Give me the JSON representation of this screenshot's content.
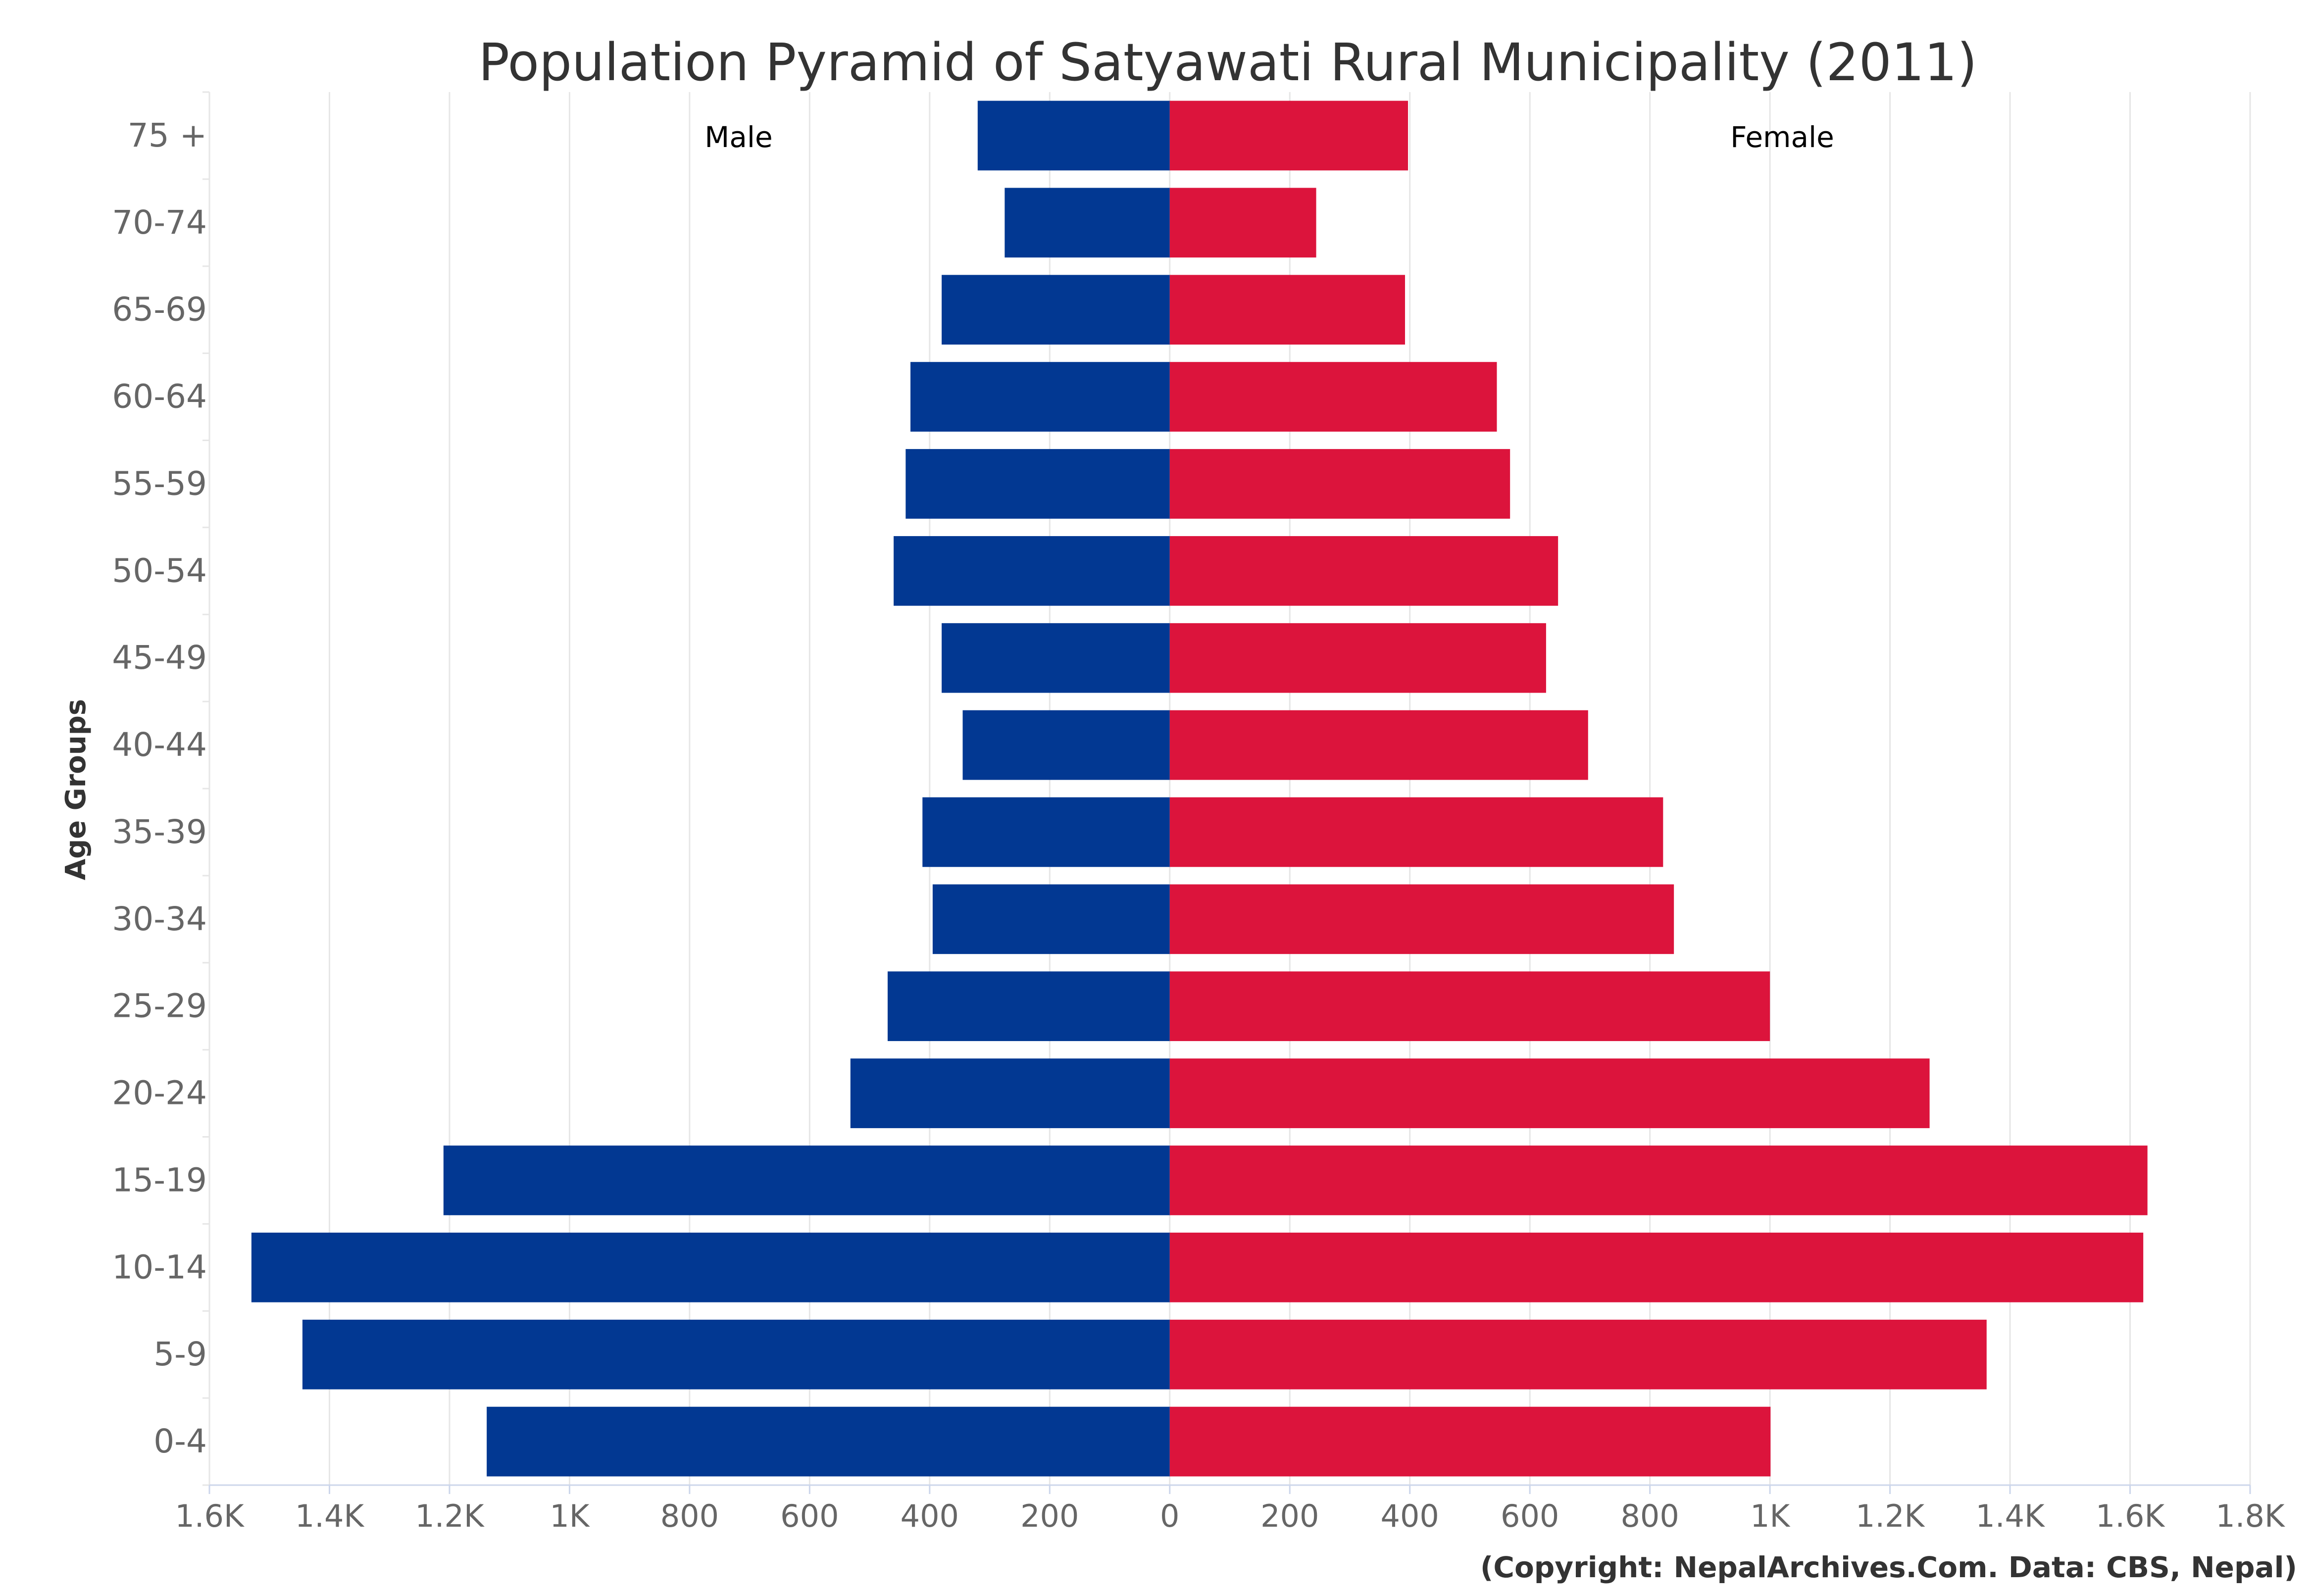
{
  "chart_data": {
    "type": "bar",
    "orientation": "horizontal",
    "title": "Population Pyramid of Satyawati Rural Municipality (2011)",
    "ylabel": "Age Groups",
    "xlim": [
      -1600,
      1800
    ],
    "x_ticks": [
      -1600,
      -1400,
      -1200,
      -1000,
      -800,
      -600,
      -400,
      -200,
      0,
      200,
      400,
      600,
      800,
      1000,
      1200,
      1400,
      1600,
      1800
    ],
    "x_tick_labels": [
      "1.6K",
      "1.4K",
      "1.2K",
      "1K",
      "800",
      "600",
      "400",
      "200",
      "0",
      "200",
      "400",
      "600",
      "800",
      "1K",
      "1.2K",
      "1.4K",
      "1.6K",
      "1.8K"
    ],
    "categories": [
      "75 +",
      "70-74",
      "65-69",
      "60-64",
      "55-59",
      "50-54",
      "45-49",
      "40-44",
      "35-39",
      "30-34",
      "25-29",
      "20-24",
      "15-19",
      "10-14",
      "5-9",
      "0-4"
    ],
    "series": [
      {
        "name": "Male",
        "color": "#023892",
        "values": [
          320,
          275,
          380,
          432,
          440,
          460,
          380,
          345,
          412,
          395,
          470,
          532,
          1210,
          1530,
          1445,
          1138
        ]
      },
      {
        "name": "Female",
        "color": "#DC143C",
        "values": [
          397,
          244,
          392,
          545,
          567,
          647,
          627,
          697,
          822,
          840,
          1000,
          1266,
          1629,
          1622,
          1361,
          1001
        ]
      }
    ],
    "annotations": {
      "left_label": "Male",
      "right_label": "Female"
    },
    "grid": true,
    "legend": "none"
  },
  "credit": "(Copyright: NepalArchives.Com. Data: CBS, Nepal)"
}
